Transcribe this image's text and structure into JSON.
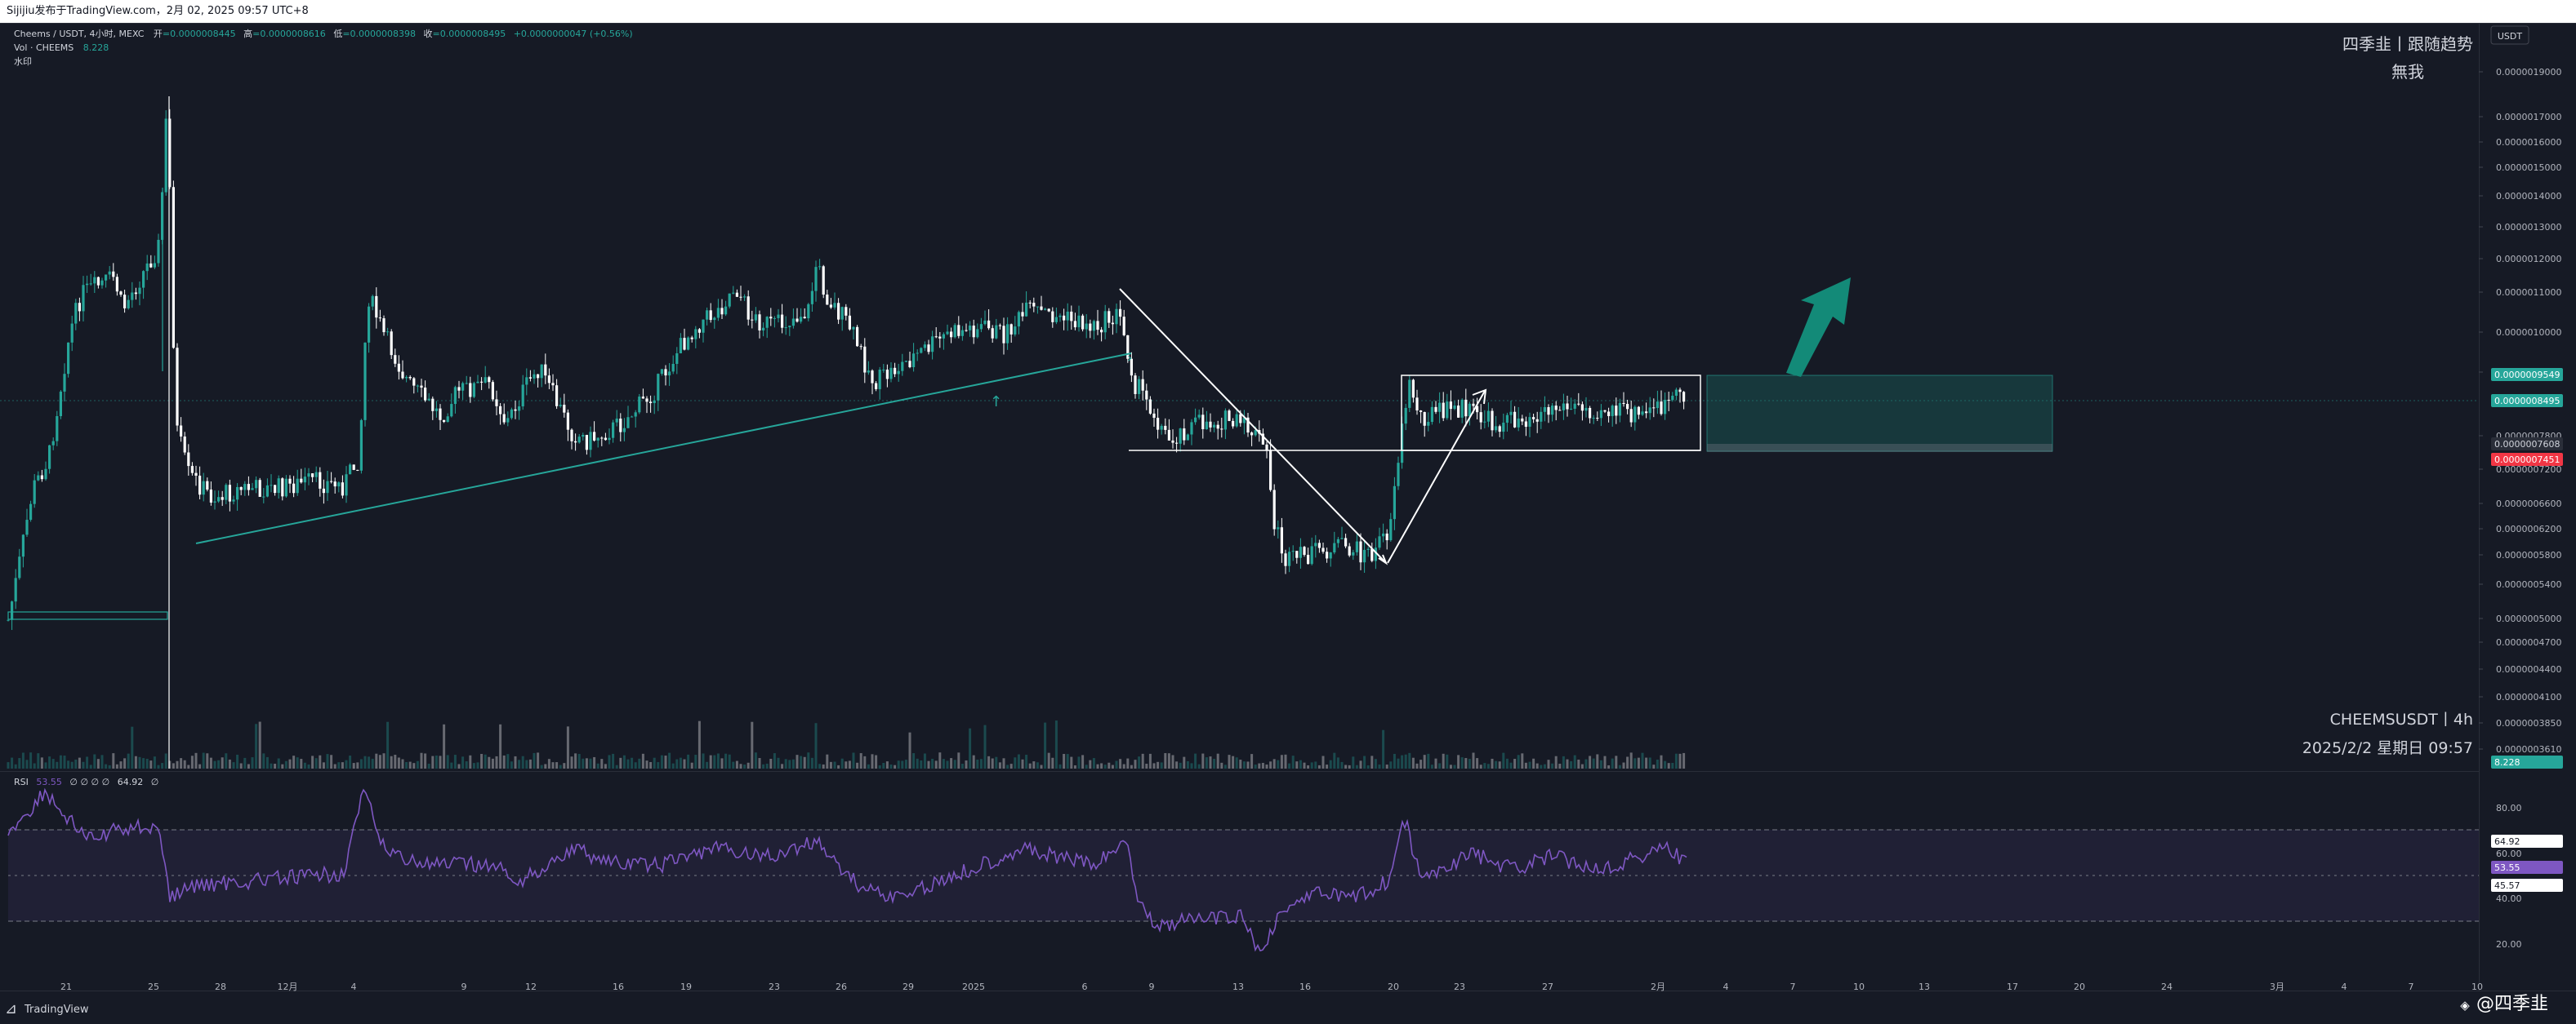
{
  "header": {
    "snapshot_text": "Sijijiu发布于TradingView.com，2月 02, 2025 09:57 UTC+8"
  },
  "legend": {
    "symbol_line": "Cheems / USDT, 4小时, MEXC",
    "o_label": "开",
    "o_value": "=0.0000008445",
    "h_label": "高",
    "h_value": "=0.0000008616",
    "l_label": "低",
    "l_value": "=0.0000008398",
    "c_label": "收",
    "c_value": "=0.0000008495",
    "change": "+0.0000000047 (+0.56%)",
    "vol_label": "Vol · CHEEMS",
    "vol_value": "8.228",
    "indicator_label": "水印"
  },
  "watermark": {
    "line1": "四季韭丨跟随趋势",
    "line2": "無我"
  },
  "symbol_stamp": {
    "line1": "CHEEMSUSDT丨4h",
    "line2": "2025/2/2 星期日 09:57"
  },
  "currency_button": "USDT",
  "footer": {
    "brand": "TradingView",
    "author": "@四季韭"
  },
  "price_labels": [
    {
      "text": "0.0000009549",
      "bg": "#26a69a",
      "fg": "#ffffff",
      "y": 459
    },
    {
      "text": "0.0000008495",
      "bg": "#26a69a",
      "fg": "#ffffff",
      "y": 491
    },
    {
      "text": "0.0000007608",
      "bg": "#2a2e39",
      "fg": "#d1d4dc",
      "y": 544
    },
    {
      "text": "0.0000007451",
      "bg": "#f23645",
      "fg": "#ffffff",
      "y": 563
    },
    {
      "text": "8.228",
      "bg": "#26a69a",
      "fg": "#ffffff",
      "y": 934
    }
  ],
  "rsi": {
    "label": "RSI",
    "v1": "53.55",
    "params": "∅ ∅ ∅ ∅",
    "v2": "64.92",
    "v3": "∅",
    "badges": [
      {
        "text": "64.92",
        "bg": "#ffffff",
        "fg": "#131722",
        "y": 1031
      },
      {
        "text": "53.55",
        "bg": "#7e57c2",
        "fg": "#ffffff",
        "y": 1063
      },
      {
        "text": "45.57",
        "bg": "#ffffff",
        "fg": "#131722",
        "y": 1085
      }
    ]
  },
  "chart_data": [
    {
      "type": "candlestick",
      "title": "Cheems / USDT, 4小时, MEXC",
      "x_ticks": [
        "21",
        "25",
        "28",
        "12月",
        "4",
        "9",
        "12",
        "16",
        "19",
        "23",
        "26",
        "29",
        "2025",
        "6",
        "9",
        "13",
        "16",
        "20",
        "23",
        "27",
        "2月",
        "4",
        "7",
        "10",
        "13",
        "17",
        "20",
        "24",
        "3月",
        "4",
        "7",
        "10"
      ],
      "y_ticks": [
        "0.0000019000",
        "0.0000017000",
        "0.0000016000",
        "0.0000015000",
        "0.0000014000",
        "0.0000013000",
        "0.0000012000",
        "0.0000011000",
        "0.0000010000",
        "0.0000009000",
        "0.0000007800",
        "0.0000007200",
        "0.0000006600",
        "0.0000006200",
        "0.0000005800",
        "0.0000005400",
        "0.0000005000",
        "0.0000004700",
        "0.0000004400",
        "0.0000004100",
        "0.0000003850",
        "0.0000003610"
      ],
      "y_scale": "log",
      "last_price": "0.0000008495",
      "colors": {
        "up": "#26a69a",
        "down": "#ffffff",
        "trendline": "#26a69a",
        "annotation": "#ffffff",
        "target_arrow": "#138a78"
      },
      "key_levels": [
        "0.0000009549",
        "0.0000007608",
        "0.0000007451"
      ]
    },
    {
      "type": "line",
      "title": "RSI",
      "y_ticks": [
        "80.00",
        "60.00",
        "40.00",
        "20.00"
      ],
      "band": [
        30,
        70
      ],
      "mid": 50,
      "last_values": [
        "64.92",
        "53.55",
        "45.57"
      ],
      "color": "#7e57c2"
    }
  ]
}
